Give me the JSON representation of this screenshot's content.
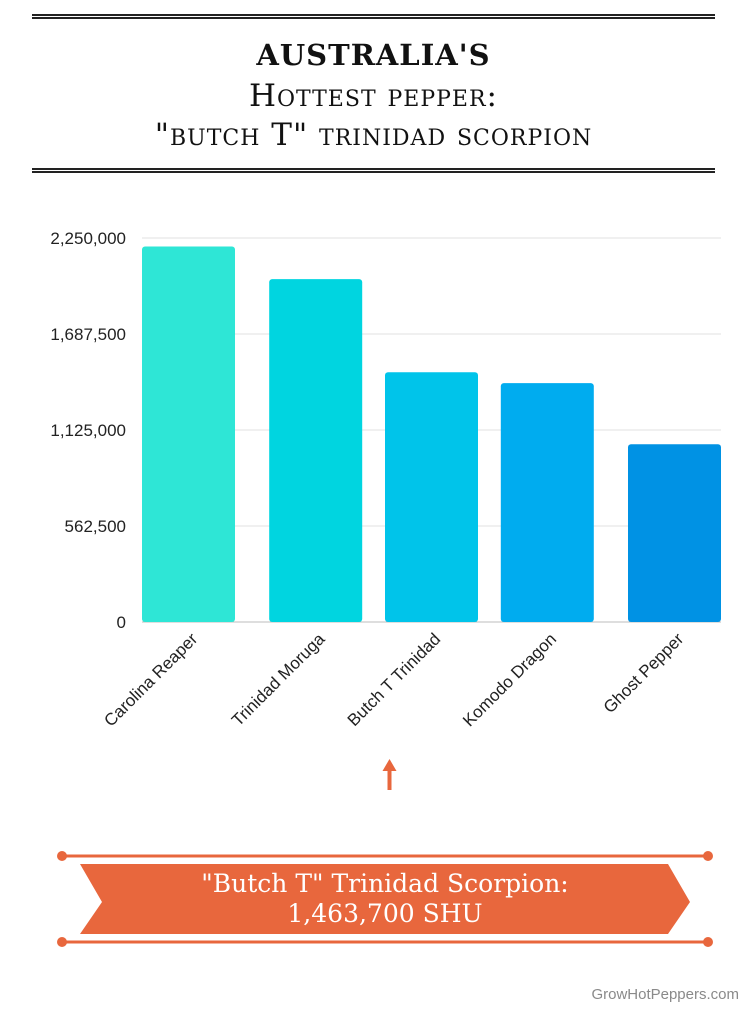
{
  "title": {
    "line1": "AUSTRALIA'S",
    "line2": "Hottest pepper:",
    "line3": "\"butch T\" trinidad scorpion"
  },
  "chart_data": {
    "type": "bar",
    "categories": [
      "Carolina Reaper",
      "Trinidad Moruga",
      "Butch T Trinidad",
      "Komodo Dragon",
      "Ghost Pepper"
    ],
    "values": [
      2200000,
      2009231,
      1463700,
      1400000,
      1041427
    ],
    "ylim": [
      0,
      2250000
    ],
    "yticks": [
      0,
      562500,
      1125000,
      1687500,
      2250000
    ],
    "ytick_labels": [
      "0",
      "562,500",
      "1,125,000",
      "1,687,500",
      "2,250,000"
    ],
    "colors": [
      "#2ee6d6",
      "#00d5e0",
      "#00c4ea",
      "#00acef",
      "#0092e4"
    ],
    "highlight_category": "Butch T Trinidad",
    "highlight_color": "#e8673d",
    "grid": true,
    "xlabel": "",
    "ylabel": ""
  },
  "banner": {
    "line1": "\"Butch T\" Trinidad Scorpion:",
    "line2": "1,463,700 SHU",
    "color": "#e8673d"
  },
  "footer": "GrowHotPeppers.com"
}
